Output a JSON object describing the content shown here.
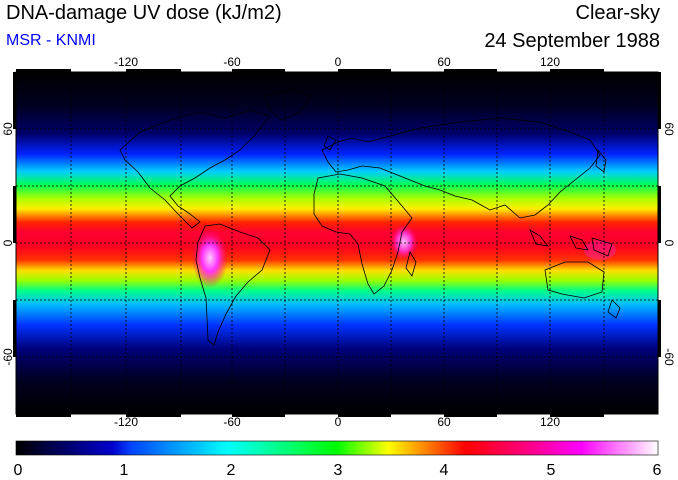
{
  "header": {
    "title": "DNA-damage UV dose (kJ/m2)",
    "subtitle": "MSR - KNMI",
    "condition": "Clear-sky",
    "date": "24 September 1988"
  },
  "map": {
    "projection": "equirectangular",
    "lon_range": [
      -180,
      180
    ],
    "lat_range": [
      -90,
      90
    ],
    "lon_ticks": [
      "-120",
      "-60",
      "0",
      "60",
      "120"
    ],
    "lat_ticks": [
      "60",
      "0",
      "-60"
    ],
    "lat_ticks_right": [
      "60",
      "0",
      "-60"
    ],
    "gridlines": "dotted every 30 degrees",
    "coastlines": true
  },
  "colorbar": {
    "ticks": [
      "0",
      "1",
      "2",
      "3",
      "4",
      "5",
      "6"
    ],
    "range": [
      0,
      6
    ],
    "stops": [
      "#000000",
      "#0000ff",
      "#00ffff",
      "#00ff00",
      "#ffff00",
      "#ff0000",
      "#ff00ff",
      "#ffffff"
    ]
  },
  "chart_data": {
    "type": "heatmap",
    "title": "DNA-damage UV dose (kJ/m2)",
    "units": "kJ/m2",
    "zlim": [
      0,
      6
    ],
    "zonal_profile": {
      "lat": [
        90,
        75,
        60,
        45,
        30,
        15,
        0,
        -15,
        -30,
        -45,
        -60,
        -75,
        -90
      ],
      "value": [
        0.05,
        0.2,
        0.6,
        1.6,
        2.8,
        3.8,
        4.3,
        3.9,
        2.7,
        1.4,
        0.5,
        0.2,
        0.05
      ]
    },
    "hotspots": [
      {
        "region": "Andes",
        "lon": -70,
        "lat": -12,
        "value": 5.6
      },
      {
        "region": "East African highlands",
        "lon": 36,
        "lat": 0,
        "value": 5.2
      }
    ]
  }
}
